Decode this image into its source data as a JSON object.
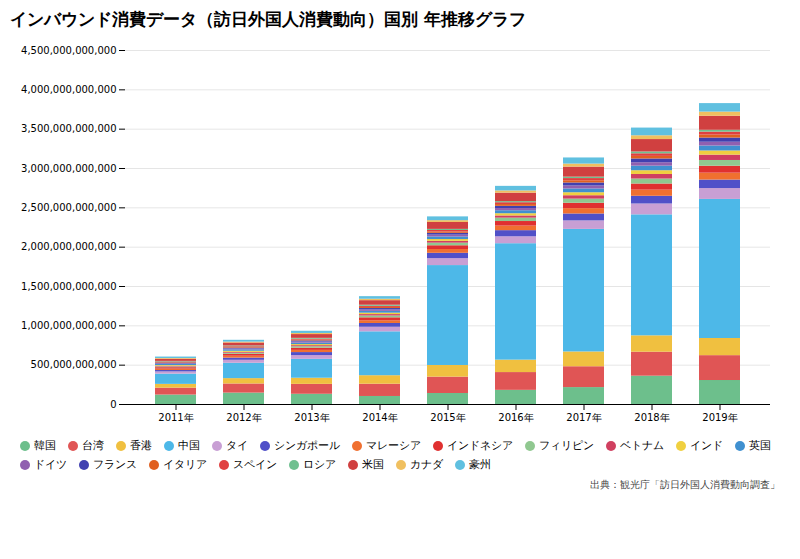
{
  "chart_data": {
    "type": "bar",
    "stacked": true,
    "grid": true,
    "title": "インバウンド消費データ（訪日外国人消費動向）国別 年推移グラフ",
    "source": "出典：観光庁「訪日外国人消費動向調査」",
    "categories": [
      "2011年",
      "2012年",
      "2013年",
      "2014年",
      "2015年",
      "2016年",
      "2017年",
      "2018年",
      "2019年"
    ],
    "ylim": [
      0,
      4500000000000
    ],
    "yticks": [
      0,
      {
        "value": 500000000000,
        "label": "500,000,000,000"
      },
      {
        "value": 1000000000000,
        "label": "1,000,000,000,000"
      },
      {
        "value": 1500000000000,
        "label": "1,500,000,000,000"
      },
      {
        "value": 2000000000000,
        "label": "2,000,000,000,000"
      },
      {
        "value": 2500000000000,
        "label": "2,500,000,000,000"
      },
      {
        "value": 3000000000000,
        "label": "3,000,000,000,000"
      },
      {
        "value": 3500000000000,
        "label": "3,500,000,000,000"
      },
      {
        "value": 4000000000000,
        "label": "4,000,000,000,000"
      },
      {
        "value": 4500000000000,
        "label": "4,500,000,000,000"
      }
    ],
    "series": [
      {
        "name": "韓国",
        "color": "#6dbf8c",
        "values": [
          120000000000,
          145000000000,
          130000000000,
          102000000000,
          140000000000,
          180000000000,
          215000000000,
          360000000000,
          305000000000
        ]
      },
      {
        "name": "台湾",
        "color": "#e05555",
        "values": [
          88000000000,
          116000000000,
          126000000000,
          156000000000,
          208000000000,
          226000000000,
          265000000000,
          305000000000,
          316000000000
        ]
      },
      {
        "name": "香港",
        "color": "#f0c040",
        "values": [
          48000000000,
          68000000000,
          78000000000,
          108000000000,
          148000000000,
          158000000000,
          188000000000,
          208000000000,
          218000000000
        ]
      },
      {
        "name": "中国",
        "color": "#4db8e8",
        "values": [
          130000000000,
          195000000000,
          240000000000,
          558000000000,
          1270000000000,
          1480000000000,
          1558000000000,
          1538000000000,
          1768000000000
        ]
      },
      {
        "name": "タイ",
        "color": "#c89fd4",
        "values": [
          28000000000,
          38000000000,
          48000000000,
          58000000000,
          88000000000,
          88000000000,
          108000000000,
          138000000000,
          138000000000
        ]
      },
      {
        "name": "シンガポール",
        "color": "#5050c8",
        "values": [
          18000000000,
          28000000000,
          38000000000,
          48000000000,
          68000000000,
          78000000000,
          88000000000,
          98000000000,
          108000000000
        ]
      },
      {
        "name": "マレーシア",
        "color": "#f07030",
        "values": [
          18000000000,
          24000000000,
          28000000000,
          34000000000,
          48000000000,
          58000000000,
          68000000000,
          78000000000,
          88000000000
        ]
      },
      {
        "name": "インドネシア",
        "color": "#e03030",
        "values": [
          18000000000,
          24000000000,
          28000000000,
          38000000000,
          48000000000,
          58000000000,
          68000000000,
          78000000000,
          88000000000
        ]
      },
      {
        "name": "フィリピン",
        "color": "#90c890",
        "values": [
          9000000000,
          14000000000,
          18000000000,
          23000000000,
          33000000000,
          43000000000,
          53000000000,
          63000000000,
          73000000000
        ]
      },
      {
        "name": "ベトナム",
        "color": "#d04060",
        "values": [
          9000000000,
          11000000000,
          14000000000,
          18000000000,
          23000000000,
          28000000000,
          43000000000,
          58000000000,
          68000000000
        ]
      },
      {
        "name": "インド",
        "color": "#f0d040",
        "values": [
          9000000000,
          14000000000,
          14000000000,
          18000000000,
          23000000000,
          28000000000,
          38000000000,
          48000000000,
          53000000000
        ]
      },
      {
        "name": "英国",
        "color": "#4090d0",
        "values": [
          14000000000,
          18000000000,
          18000000000,
          23000000000,
          33000000000,
          38000000000,
          48000000000,
          58000000000,
          63000000000
        ]
      },
      {
        "name": "ドイツ",
        "color": "#9060b0",
        "values": [
          9000000000,
          11000000000,
          14000000000,
          18000000000,
          23000000000,
          28000000000,
          38000000000,
          43000000000,
          48000000000
        ]
      },
      {
        "name": "フランス",
        "color": "#4040b0",
        "values": [
          9000000000,
          11000000000,
          14000000000,
          18000000000,
          23000000000,
          28000000000,
          38000000000,
          48000000000,
          53000000000
        ]
      },
      {
        "name": "イタリア",
        "color": "#e06020",
        "values": [
          7000000000,
          9000000000,
          11000000000,
          14000000000,
          18000000000,
          23000000000,
          28000000000,
          33000000000,
          38000000000
        ]
      },
      {
        "name": "スペイン",
        "color": "#e04040",
        "values": [
          7000000000,
          9000000000,
          11000000000,
          14000000000,
          18000000000,
          23000000000,
          28000000000,
          33000000000,
          38000000000
        ]
      },
      {
        "name": "ロシア",
        "color": "#70c090",
        "values": [
          7000000000,
          9000000000,
          11000000000,
          14000000000,
          14000000000,
          14000000000,
          18000000000,
          23000000000,
          23000000000
        ]
      },
      {
        "name": "米国",
        "color": "#d04040",
        "values": [
          28000000000,
          38000000000,
          48000000000,
          58000000000,
          88000000000,
          108000000000,
          128000000000,
          158000000000,
          178000000000
        ]
      },
      {
        "name": "カナダ",
        "color": "#f0c060",
        "values": [
          9000000000,
          11000000000,
          14000000000,
          18000000000,
          23000000000,
          28000000000,
          38000000000,
          48000000000,
          53000000000
        ]
      },
      {
        "name": "豪州",
        "color": "#60c0e0",
        "values": [
          18000000000,
          23000000000,
          28000000000,
          33000000000,
          48000000000,
          58000000000,
          78000000000,
          98000000000,
          108000000000
        ]
      }
    ]
  }
}
